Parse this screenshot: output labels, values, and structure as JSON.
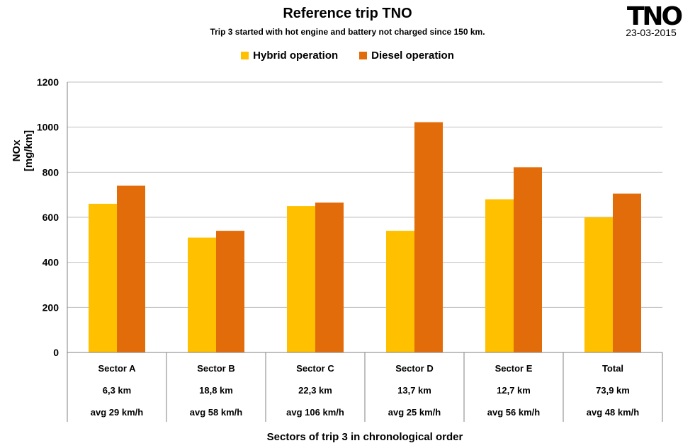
{
  "header": {
    "title": "Reference trip TNO",
    "subtitle": "Trip 3 started with hot engine and battery not charged since 150 km.",
    "logo_text": "TNO",
    "date": "23-03-2015"
  },
  "legend": [
    {
      "name": "Hybrid operation",
      "color": "#FFC000"
    },
    {
      "name": "Diesel operation",
      "color": "#E36C0A"
    }
  ],
  "chart_data": {
    "type": "bar",
    "categories": [
      {
        "name": "Sector A",
        "distance": "6,3 km",
        "speed": "avg 29 km/h"
      },
      {
        "name": "Sector B",
        "distance": "18,8 km",
        "speed": "avg 58 km/h"
      },
      {
        "name": "Sector C",
        "distance": "22,3 km",
        "speed": "avg 106 km/h"
      },
      {
        "name": "Sector D",
        "distance": "13,7 km",
        "speed": "avg 25 km/h"
      },
      {
        "name": "Sector E",
        "distance": "12,7 km",
        "speed": "avg 56 km/h"
      },
      {
        "name": "Total",
        "distance": "73,9 km",
        "speed": "avg 48 km/h"
      }
    ],
    "series": [
      {
        "name": "Hybrid operation",
        "color": "#FFC000",
        "values": [
          660,
          510,
          650,
          540,
          680,
          600
        ]
      },
      {
        "name": "Diesel operation",
        "color": "#E36C0A",
        "values": [
          740,
          540,
          665,
          1022,
          822,
          705
        ]
      }
    ],
    "ylabel": "NOx [mg/km]",
    "xlabel": "Sectors of trip 3 in chronological order",
    "ylim": [
      0,
      1200
    ],
    "yticks": [
      "0",
      "200",
      "400",
      "600",
      "800",
      "1000",
      "1200"
    ],
    "grid": true,
    "legend_position": "top-center"
  }
}
